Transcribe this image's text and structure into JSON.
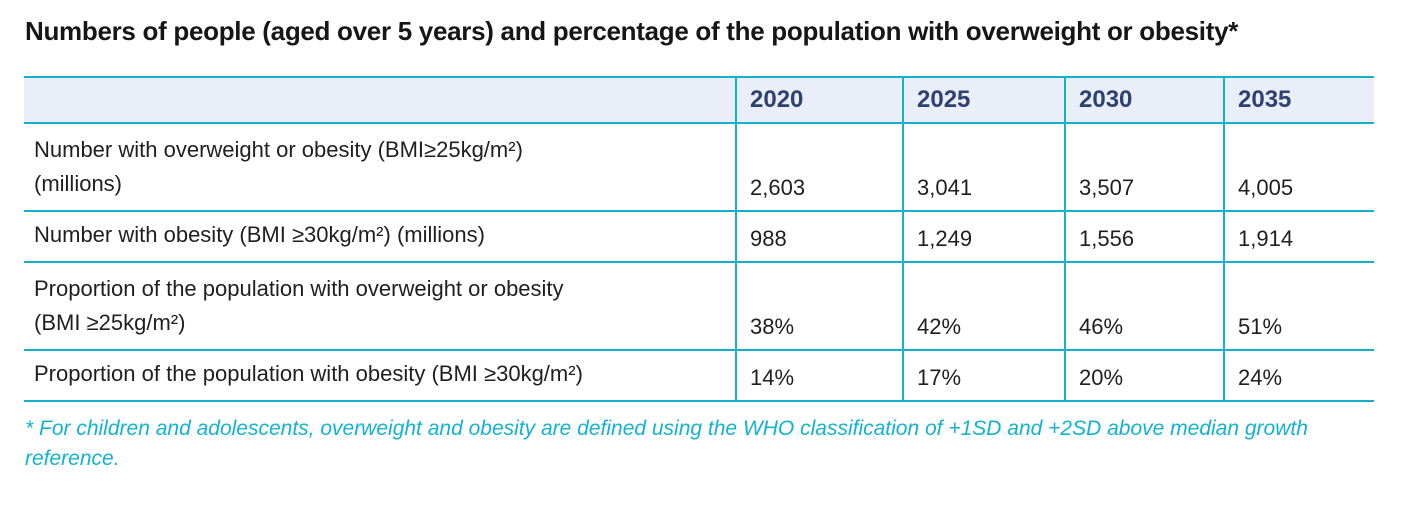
{
  "title": "Numbers of people (aged over 5 years) and percentage of the population with overweight or obesity*",
  "table": {
    "columns": [
      "2020",
      "2025",
      "2030",
      "2035"
    ],
    "rows": [
      {
        "label": "Number with overweight or obesity (BMI≥25kg/m²)\n(millions)",
        "values": [
          "2,603",
          "3,041",
          "3,507",
          "4,005"
        ]
      },
      {
        "label": "Number with obesity (BMI ≥30kg/m²) (millions)",
        "values": [
          "988",
          "1,249",
          "1,556",
          "1,914"
        ]
      },
      {
        "label": "Proportion of the population with overweight or obesity\n(BMI ≥25kg/m²)",
        "values": [
          "38%",
          "42%",
          "46%",
          "51%"
        ]
      },
      {
        "label": "Proportion of the population with obesity (BMI ≥30kg/m²)",
        "values": [
          "14%",
          "17%",
          "20%",
          "24%"
        ]
      }
    ]
  },
  "footnote": "* For children and adolescents, overweight and obesity are defined using the WHO classification of +1SD and +2SD above median growth\nreference.",
  "colors": {
    "accent_teal": "#14b1cb",
    "header_bg": "#eaeef9",
    "header_text": "#2e4170",
    "body_text": "#1f1f21",
    "footnote_text": "#13b3cf"
  }
}
